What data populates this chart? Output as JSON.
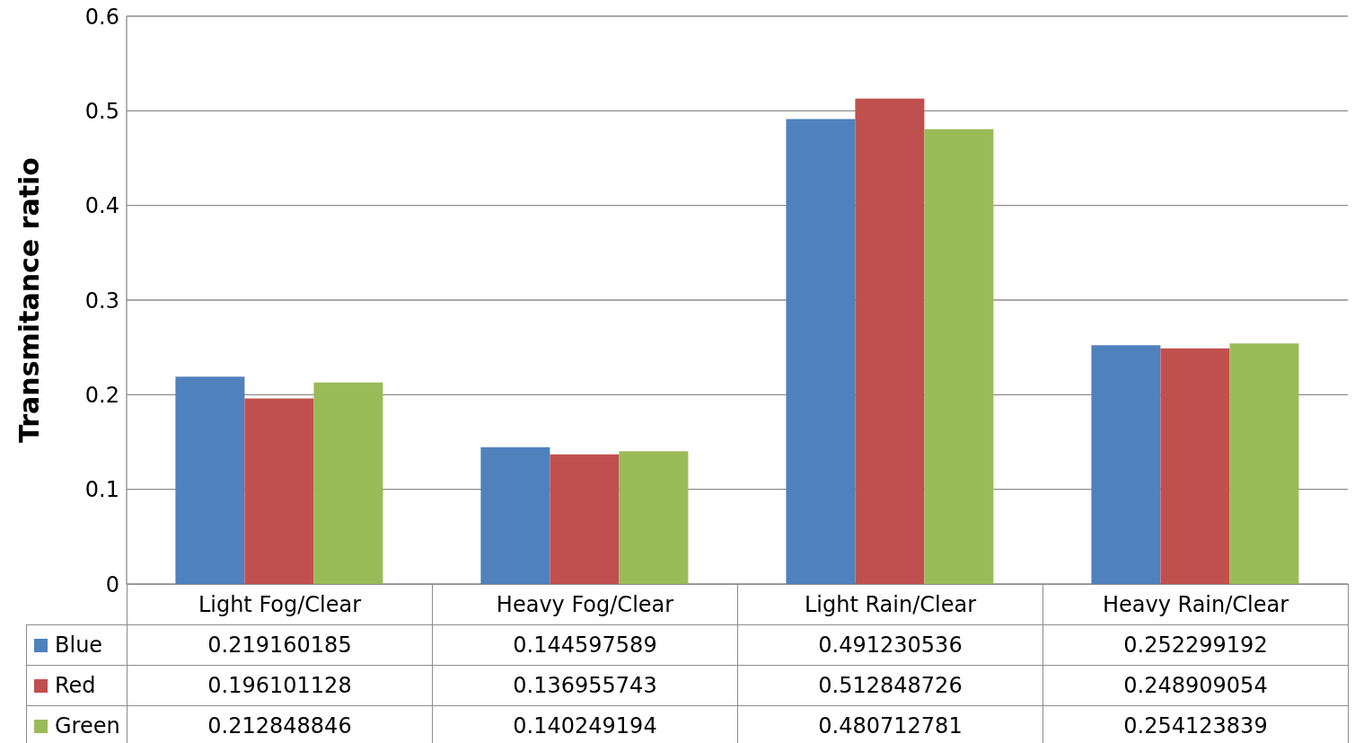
{
  "chart_data": {
    "type": "bar",
    "ylabel": "Transmitance ratio",
    "categories": [
      "Light Fog/Clear",
      "Heavy Fog/Clear",
      "Light Rain/Clear",
      "Heavy Rain/Clear"
    ],
    "series": [
      {
        "name": "Blue",
        "color": "#4f81bd",
        "values": [
          0.219160185,
          0.144597589,
          0.491230536,
          0.252299192
        ]
      },
      {
        "name": "Red",
        "color": "#c0504d",
        "values": [
          0.196101128,
          0.136955743,
          0.512848726,
          0.248909054
        ]
      },
      {
        "name": "Green",
        "color": "#9bbb59",
        "values": [
          0.212848846,
          0.140249194,
          0.480712781,
          0.254123839
        ]
      }
    ],
    "ylim": [
      0,
      0.6
    ],
    "yticks": [
      0,
      0.1,
      0.2,
      0.3,
      0.4,
      0.5,
      0.6
    ],
    "grid": "y",
    "legend": "bottom",
    "data_labels": true
  }
}
